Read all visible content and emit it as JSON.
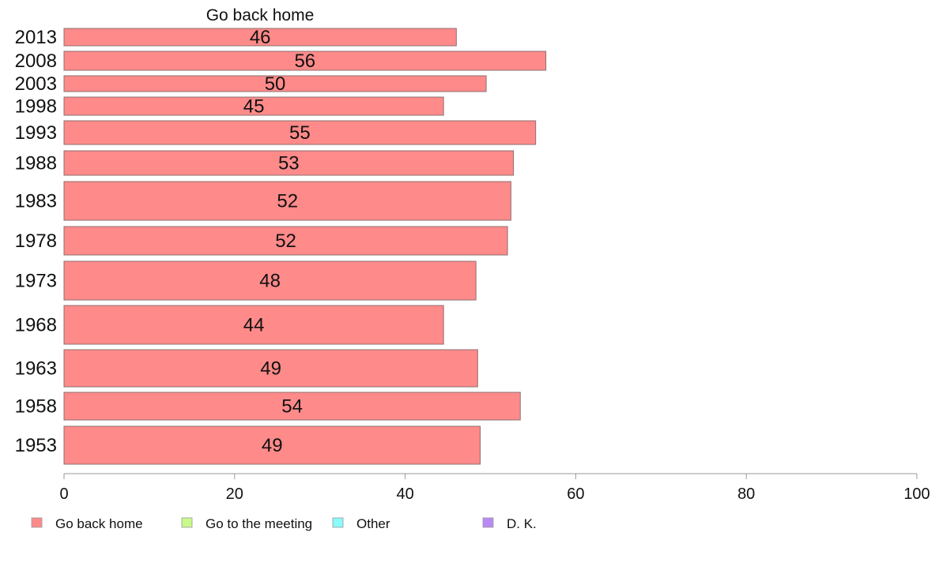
{
  "chart_data": {
    "type": "bar",
    "orientation": "horizontal",
    "title": "Go back home",
    "categories": [
      "2013",
      "2008",
      "2003",
      "1998",
      "1993",
      "1988",
      "1983",
      "1978",
      "1973",
      "1968",
      "1963",
      "1958",
      "1953"
    ],
    "series": [
      {
        "name": "Go back home",
        "color": "#ff8a8a",
        "values": [
          46,
          56.5,
          49.5,
          44.5,
          55.3,
          52.7,
          52.4,
          52,
          48.3,
          44.5,
          48.5,
          53.5,
          48.8
        ],
        "labels": [
          "46",
          "56",
          "50",
          "45",
          "55",
          "53",
          "52",
          "52",
          "48",
          "44",
          "49",
          "54",
          "49"
        ]
      }
    ],
    "xlim": [
      0,
      100
    ],
    "xticks": [
      "0",
      "20",
      "40",
      "60",
      "80",
      "100"
    ],
    "xlabel": "",
    "ylabel": "",
    "grid": false,
    "legend": {
      "placement": "bottom-left",
      "entries": [
        {
          "label": "Go back home",
          "color": "#ff8a8a"
        },
        {
          "label": "Go to the meeting",
          "color": "#c8fa8a"
        },
        {
          "label": "Other",
          "color": "#8afafa"
        },
        {
          "label": "D. K.",
          "color": "#b98af5"
        }
      ]
    }
  }
}
